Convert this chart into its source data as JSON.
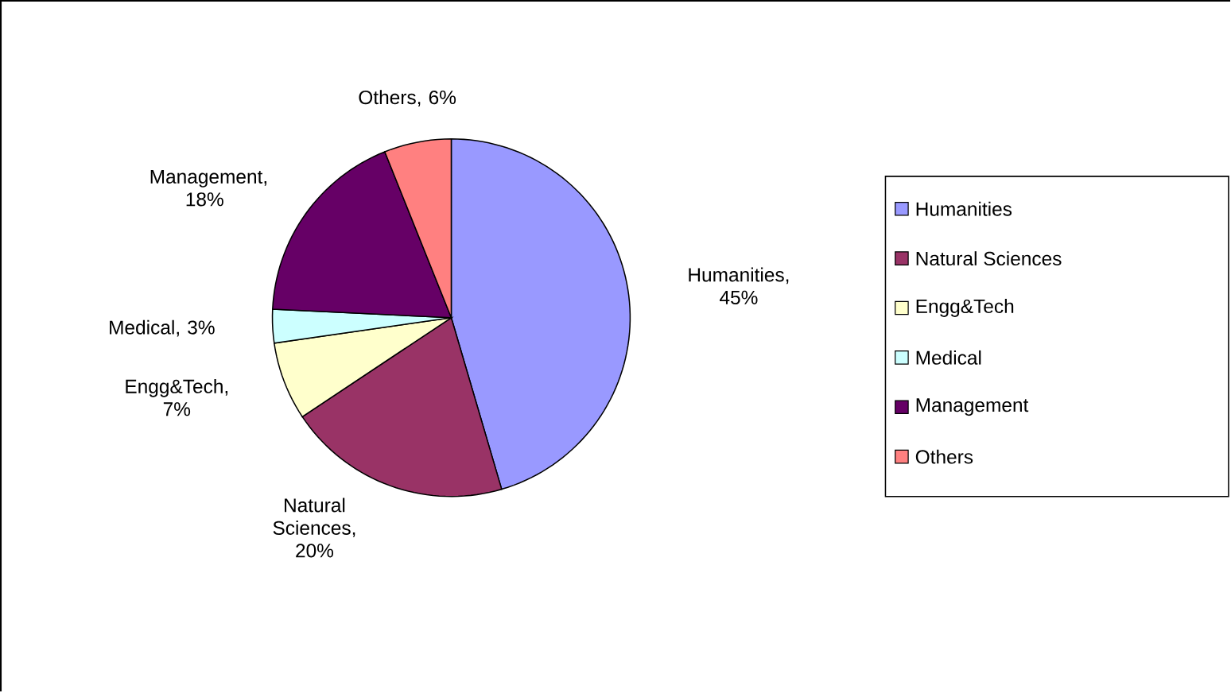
{
  "chart_data": {
    "type": "pie",
    "categories": [
      "Humanities",
      "Natural Sciences",
      "Engg&Tech",
      "Medical",
      "Management",
      "Others"
    ],
    "values": [
      45,
      20,
      7,
      3,
      18,
      6
    ],
    "value_labels": [
      "Humanities, 45%",
      "Natural Sciences, 20%",
      "Engg&Tech, 7%",
      "Medical, 3%",
      "Management, 18%",
      "Others, 6%"
    ],
    "colors": [
      "#9999ff",
      "#993366",
      "#ffffcc",
      "#ccffff",
      "#660066",
      "#ff8080"
    ],
    "legend": "right"
  }
}
